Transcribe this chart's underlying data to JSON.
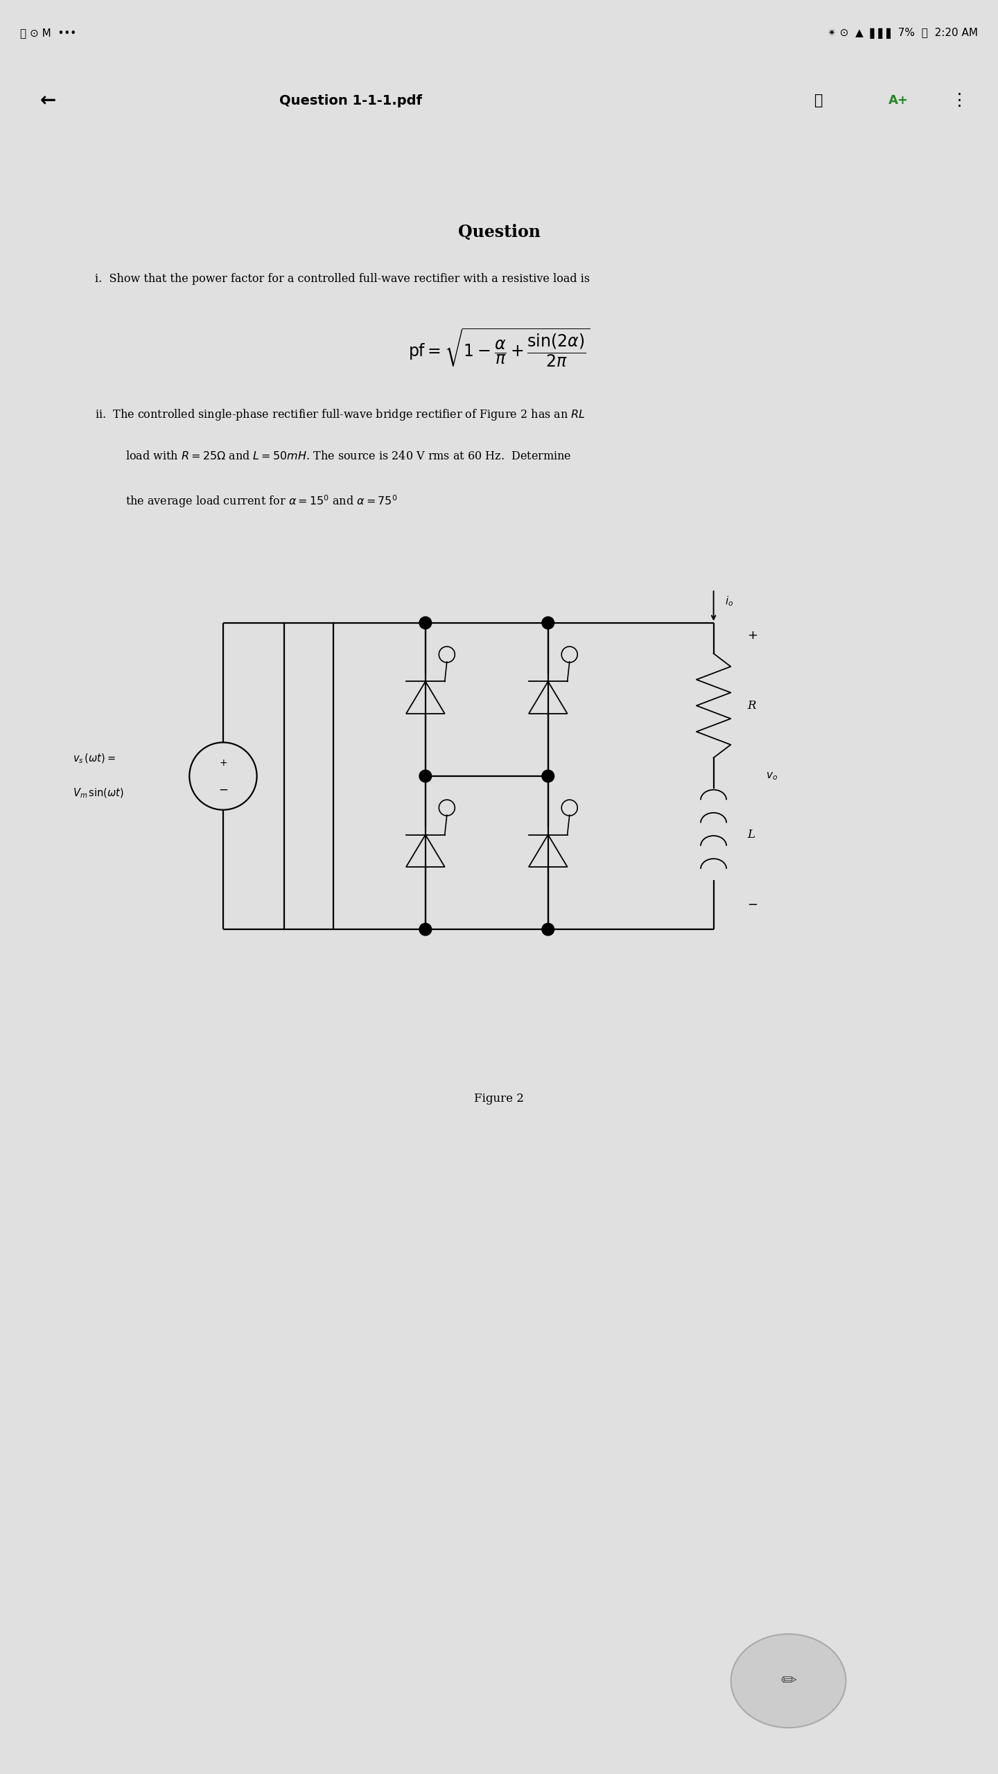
{
  "bg_color": "#e0e0e0",
  "page_bg": "#ffffff",
  "title": "Question",
  "figure_label": "Figure 2",
  "header_text": "Question 1-1-1.pdf"
}
